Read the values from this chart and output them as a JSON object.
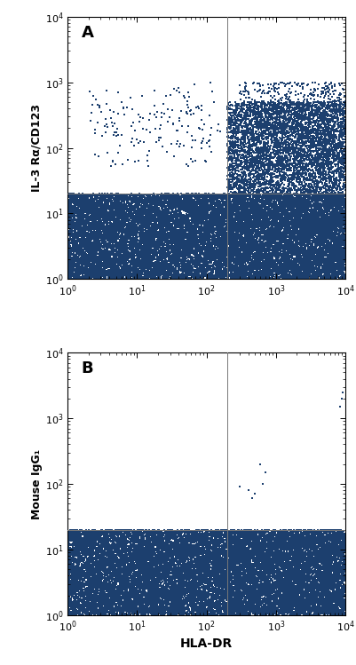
{
  "title_A": "A",
  "title_B": "B",
  "ylabel_A": "IL-3 Rα/CD123",
  "ylabel_B": "Mouse IgG₁",
  "xlabel": "HLA-DR",
  "xlim": [
    1,
    10000
  ],
  "ylim": [
    1,
    10000
  ],
  "dot_color": "#1c3f6e",
  "bg_color": "#ffffff",
  "gate_vline": 200,
  "gate_hline": 20,
  "seed": 42
}
